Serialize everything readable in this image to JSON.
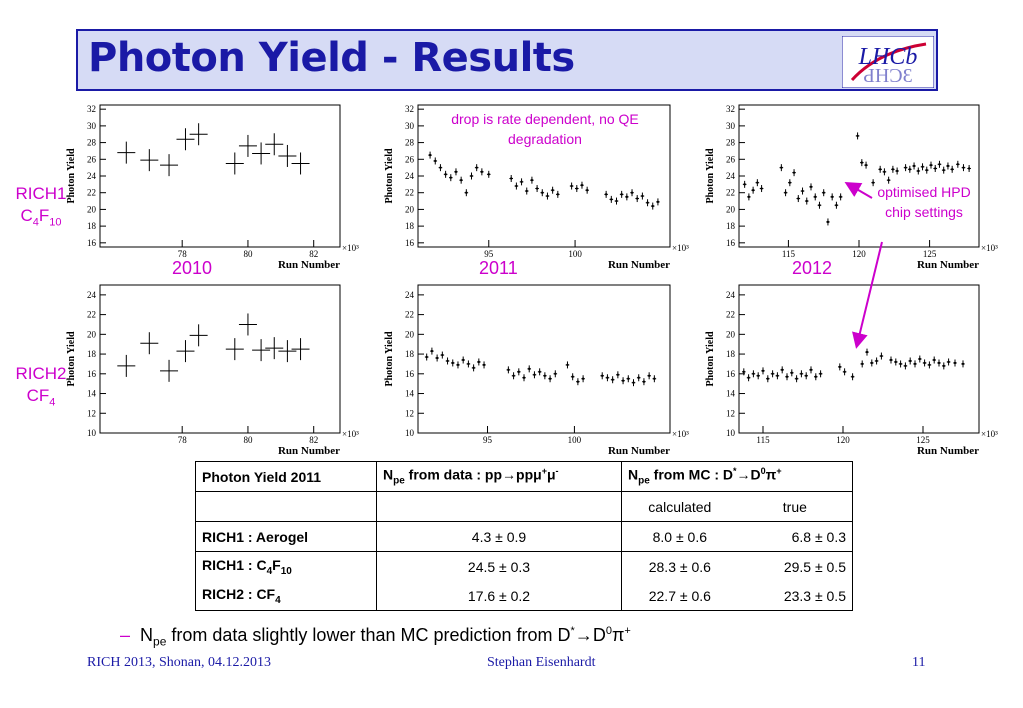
{
  "title": "Photon Yield - Results",
  "logo_text": "LHCb",
  "labels": {
    "rich1_name": "RICH1",
    "rich1_gas": "C",
    "rich1_gas_sub1": "4",
    "rich1_gas_f": "F",
    "rich1_gas_sub2": "10",
    "rich2_name": "RICH2",
    "rich2_gas": "CF",
    "rich2_gas_sub": "4",
    "year_2010": "2010",
    "year_2011": "2011",
    "year_2012": "2012",
    "annot_drop": "drop is rate dependent, no QE degradation",
    "annot_opt": "optimised HPD chip settings"
  },
  "chart_data": [
    {
      "type": "scatter",
      "ylabel": "Photon Yield",
      "xlabel": "Run Number",
      "x_multiplier": "×10³",
      "xlim": [
        75.5,
        82.8
      ],
      "ylim": [
        15.5,
        32.5
      ],
      "xticks": [
        78,
        80,
        82
      ],
      "yticks": [
        16,
        18,
        20,
        22,
        24,
        26,
        28,
        30,
        32
      ],
      "x": [
        76.3,
        77.0,
        77.6,
        78.1,
        78.5,
        79.6,
        80.0,
        80.4,
        80.8,
        81.2,
        81.6
      ],
      "y": [
        26.8,
        25.9,
        25.3,
        28.4,
        29.0,
        25.5,
        27.6,
        26.7,
        27.8,
        26.4,
        25.5
      ]
    },
    {
      "type": "scatter",
      "ylabel": "Photon Yield",
      "xlabel": "Run Number",
      "x_multiplier": "×10³",
      "xlim": [
        90.9,
        105.5
      ],
      "ylim": [
        15.5,
        32.5
      ],
      "xticks": [
        95,
        100
      ],
      "yticks": [
        16,
        18,
        20,
        22,
        24,
        26,
        28,
        30,
        32
      ],
      "x": [
        91.6,
        91.9,
        92.2,
        92.5,
        92.8,
        93.1,
        93.4,
        93.7,
        94.0,
        94.3,
        94.6,
        95.0,
        96.3,
        96.6,
        96.9,
        97.2,
        97.5,
        97.8,
        98.1,
        98.4,
        98.7,
        99.0,
        99.8,
        100.1,
        100.4,
        100.7,
        101.8,
        102.1,
        102.4,
        102.7,
        103.0,
        103.3,
        103.6,
        103.9,
        104.2,
        104.5,
        104.8
      ],
      "y": [
        26.5,
        25.8,
        25.0,
        24.2,
        23.8,
        24.5,
        23.5,
        22.0,
        24.0,
        25.0,
        24.5,
        24.2,
        23.7,
        22.8,
        23.3,
        22.2,
        23.5,
        22.5,
        22.0,
        21.6,
        22.3,
        21.8,
        22.8,
        22.5,
        22.9,
        22.3,
        21.8,
        21.2,
        21.0,
        21.8,
        21.5,
        22.0,
        21.3,
        21.6,
        20.8,
        20.4,
        20.9
      ]
    },
    {
      "type": "scatter",
      "ylabel": "Photon Yield",
      "xlabel": "Run Number",
      "x_multiplier": "×10³",
      "xlim": [
        111.5,
        128.5
      ],
      "ylim": [
        15.5,
        32.5
      ],
      "xticks": [
        115,
        120,
        125
      ],
      "yticks": [
        16,
        18,
        20,
        22,
        24,
        26,
        28,
        30,
        32
      ],
      "x": [
        111.9,
        112.2,
        112.5,
        112.8,
        113.1,
        114.5,
        114.8,
        115.1,
        115.4,
        115.7,
        116.0,
        116.3,
        116.6,
        116.9,
        117.2,
        117.5,
        117.8,
        118.1,
        118.4,
        118.7,
        119.9,
        120.2,
        120.5,
        121.0,
        121.5,
        121.8,
        122.1,
        122.4,
        122.7,
        123.3,
        123.6,
        123.9,
        124.2,
        124.5,
        124.8,
        125.1,
        125.4,
        125.7,
        126.0,
        126.3,
        126.6,
        127.0,
        127.4,
        127.8
      ],
      "y": [
        23.0,
        21.5,
        22.3,
        23.2,
        22.5,
        25.0,
        22.0,
        23.2,
        24.4,
        21.3,
        22.2,
        21.0,
        22.7,
        21.5,
        20.5,
        22.0,
        18.5,
        21.5,
        20.5,
        21.5,
        28.8,
        25.6,
        25.3,
        23.2,
        24.8,
        24.5,
        23.5,
        24.8,
        24.6,
        25.0,
        24.8,
        25.2,
        24.6,
        25.1,
        24.7,
        25.3,
        24.9,
        25.4,
        24.7,
        25.2,
        24.8,
        25.4,
        25.0,
        24.9
      ]
    },
    {
      "type": "scatter",
      "ylabel": "Photon Yield",
      "xlabel": "Run Number",
      "x_multiplier": "×10³",
      "xlim": [
        75.5,
        82.8
      ],
      "ylim": [
        10,
        25
      ],
      "xticks": [
        78,
        80,
        82
      ],
      "yticks": [
        10,
        12,
        14,
        16,
        18,
        20,
        22,
        24
      ],
      "x": [
        76.3,
        77.0,
        77.6,
        78.1,
        78.5,
        79.6,
        80.0,
        80.4,
        80.8,
        81.2,
        81.6
      ],
      "y": [
        16.8,
        19.1,
        16.3,
        18.3,
        19.9,
        18.5,
        21.0,
        18.4,
        18.6,
        18.3,
        18.5
      ]
    },
    {
      "type": "scatter",
      "ylabel": "Photon Yield",
      "xlabel": "Run Number",
      "x_multiplier": "×10³",
      "xlim": [
        91.0,
        105.5
      ],
      "ylim": [
        10,
        25
      ],
      "xticks": [
        95,
        100
      ],
      "yticks": [
        10,
        12,
        14,
        16,
        18,
        20,
        22,
        24
      ],
      "x": [
        91.5,
        91.8,
        92.1,
        92.4,
        92.7,
        93.0,
        93.3,
        93.6,
        93.9,
        94.2,
        94.5,
        94.8,
        96.2,
        96.5,
        96.8,
        97.1,
        97.4,
        97.7,
        98.0,
        98.3,
        98.6,
        98.9,
        99.6,
        99.9,
        100.2,
        100.5,
        101.6,
        101.9,
        102.2,
        102.5,
        102.8,
        103.1,
        103.4,
        103.7,
        104.0,
        104.3,
        104.6
      ],
      "y": [
        17.7,
        18.3,
        17.6,
        17.9,
        17.3,
        17.1,
        16.9,
        17.4,
        17.0,
        16.6,
        17.2,
        16.9,
        16.4,
        15.8,
        16.2,
        15.6,
        16.5,
        15.9,
        16.2,
        15.8,
        15.5,
        16.0,
        16.9,
        15.7,
        15.2,
        15.5,
        15.8,
        15.6,
        15.4,
        15.9,
        15.3,
        15.5,
        15.1,
        15.6,
        15.2,
        15.8,
        15.5
      ]
    },
    {
      "type": "scatter",
      "ylabel": "Photon Yield",
      "xlabel": "Run Number",
      "x_multiplier": "×10³",
      "xlim": [
        113.5,
        128.5
      ],
      "ylim": [
        10,
        25
      ],
      "xticks": [
        115,
        120,
        125
      ],
      "yticks": [
        10,
        12,
        14,
        16,
        18,
        20,
        22,
        24
      ],
      "x": [
        113.8,
        114.1,
        114.4,
        114.7,
        115.0,
        115.3,
        115.6,
        115.9,
        116.2,
        116.5,
        116.8,
        117.1,
        117.4,
        117.7,
        118.0,
        118.3,
        118.6,
        119.8,
        120.1,
        120.6,
        121.2,
        121.5,
        121.8,
        122.1,
        122.4,
        123.0,
        123.3,
        123.6,
        123.9,
        124.2,
        124.5,
        124.8,
        125.1,
        125.4,
        125.7,
        126.0,
        126.3,
        126.6,
        127.0,
        127.5
      ],
      "y": [
        16.2,
        15.6,
        16.0,
        15.8,
        16.3,
        15.5,
        16.0,
        15.8,
        16.4,
        15.7,
        16.1,
        15.5,
        16.0,
        15.8,
        16.4,
        15.7,
        16.0,
        16.7,
        16.2,
        15.7,
        17.0,
        18.2,
        17.1,
        17.3,
        17.8,
        17.4,
        17.2,
        17.0,
        16.8,
        17.3,
        17.0,
        17.5,
        17.1,
        16.9,
        17.4,
        17.1,
        16.8,
        17.2,
        17.1,
        17.0
      ]
    }
  ],
  "table": {
    "header": {
      "c1": "Photon Yield 2011",
      "c2_pre": "N",
      "c2_sub": "pe",
      "c2_post": " from data : pp→ppμ",
      "c2_sup1": "+",
      "c2_mid": "μ",
      "c2_sup2": "-",
      "c3_pre": "N",
      "c3_sub": "pe",
      "c3_post": " from MC : D",
      "c3_sup1": "*",
      "c3_mid": "→D",
      "c3_sup2": "0",
      "c3_pi": "π",
      "c3_sup3": "+"
    },
    "sub_calc": "calculated",
    "sub_true": "true",
    "rows": [
      {
        "label": "RICH1 : Aerogel",
        "data": "4.3 ± 0.9",
        "calc": "8.0 ± 0.6",
        "true": "6.8 ± 0.3"
      },
      {
        "label_pre": "RICH1 : C",
        "label_sub1": "4",
        "label_mid": "F",
        "label_sub2": "10",
        "data": "24.5 ± 0.3",
        "calc": "28.3 ± 0.6",
        "true": "29.5 ± 0.5"
      },
      {
        "label_pre": "RICH2 : CF",
        "label_sub1": "4",
        "data": "17.6 ± 0.2",
        "calc": "22.7 ± 0.6",
        "true": "23.3 ± 0.5"
      }
    ]
  },
  "bullet": {
    "dash": "–",
    "pre": "N",
    "sub": "pe",
    "text": " from data slightly lower than MC prediction from D",
    "sup1": "*",
    "mid": "→D",
    "sup2": "0",
    "pi": "π",
    "sup3": "+"
  },
  "footer": {
    "left": "RICH 2013, Shonan, 04.12.2013",
    "center": "Stephan Eisenhardt",
    "right": "11"
  }
}
